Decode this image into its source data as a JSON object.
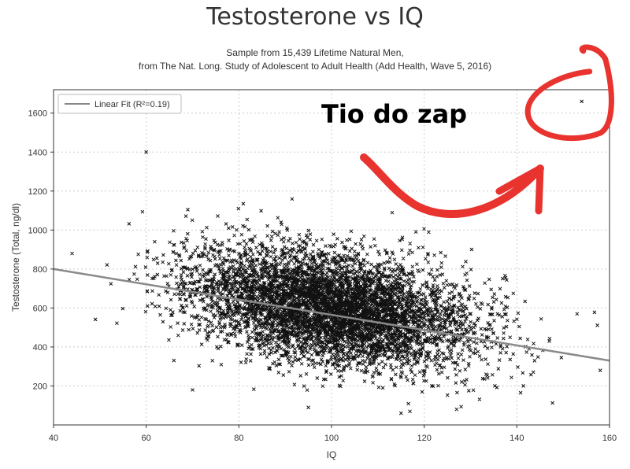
{
  "chart_data": {
    "type": "scatter",
    "title": "Testosterone vs IQ",
    "subtitle_lines": [
      "Sample from 15,439 Lifetime Natural Men,",
      "from The Nat. Long. Study of Adolescent to Adult Health (Add Health, Wave 5, 2016)"
    ],
    "xlabel": "IQ",
    "ylabel": "Testosterone (Total, ng/dl)",
    "xlim": [
      40,
      160
    ],
    "ylim": [
      0,
      1720
    ],
    "x_ticks": [
      40,
      60,
      80,
      100,
      120,
      140,
      160
    ],
    "y_ticks": [
      200,
      400,
      600,
      800,
      1000,
      1200,
      1400,
      1600
    ],
    "grid": true,
    "legend": {
      "position": "top-left",
      "entries": [
        "Linear Fit (R²=0.19)"
      ]
    },
    "series": [
      {
        "name": "Linear Fit (R²=0.19)",
        "kind": "line",
        "x": [
          40,
          160
        ],
        "y": [
          800,
          330
        ]
      },
      {
        "kind": "scatter",
        "marker": "x",
        "sample_size": 15439,
        "center": {
          "x": 100,
          "y": 600
        },
        "spread": {
          "x": 15,
          "y": 140
        },
        "outliers": [
          {
            "x": 154,
            "y": 1660
          },
          {
            "x": 60,
            "y": 1400
          },
          {
            "x": 44,
            "y": 880
          },
          {
            "x": 70,
            "y": 180
          },
          {
            "x": 95,
            "y": 90
          },
          {
            "x": 127,
            "y": 80
          },
          {
            "x": 153,
            "y": 570
          },
          {
            "x": 158,
            "y": 280
          },
          {
            "x": 115,
            "y": 60
          },
          {
            "x": 147,
            "y": 430
          }
        ]
      }
    ],
    "annotation": {
      "text": "Tio do zap",
      "color": "#e8332f",
      "circle_target": {
        "x": 154,
        "y": 1660
      }
    }
  }
}
